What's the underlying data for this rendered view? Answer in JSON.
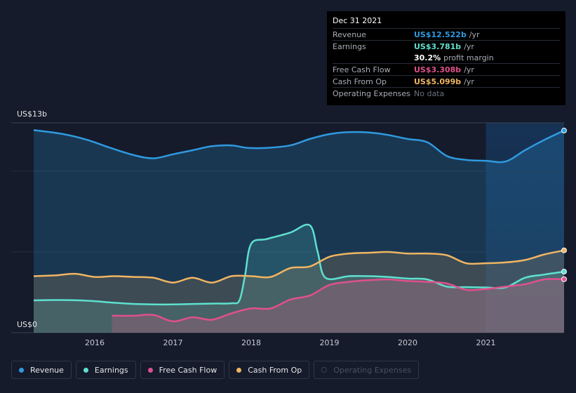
{
  "tooltip": {
    "date": "Dec 31 2021",
    "rows": [
      {
        "label": "Revenue",
        "value": "US$12.522b",
        "unit": "/yr",
        "color": "#2f9ae0"
      },
      {
        "label": "Earnings",
        "value": "US$3.781b",
        "unit": "/yr",
        "color": "#5fe0cf"
      },
      {
        "label": "",
        "value": "30.2%",
        "unit": "profit margin",
        "color": "#ffffff"
      },
      {
        "label": "Free Cash Flow",
        "value": "US$3.308b",
        "unit": "/yr",
        "color": "#e0508c"
      },
      {
        "label": "Cash From Op",
        "value": "US$5.099b",
        "unit": "/yr",
        "color": "#f0b562"
      },
      {
        "label": "Operating Expenses",
        "value": "No data",
        "unit": "",
        "color": "#6b7080"
      }
    ]
  },
  "legend": [
    {
      "label": "Revenue",
      "color": "#2f9ae0",
      "active": true
    },
    {
      "label": "Earnings",
      "color": "#5fe0cf",
      "active": true
    },
    {
      "label": "Free Cash Flow",
      "color": "#e0508c",
      "active": true
    },
    {
      "label": "Cash From Op",
      "color": "#f0b562",
      "active": true
    },
    {
      "label": "Operating Expenses",
      "color": "#3a4152",
      "active": false
    }
  ],
  "chart_data": {
    "type": "area",
    "ylabel_top": "US$13b",
    "ylabel_bottom": "US$0",
    "ylim": [
      0,
      13
    ],
    "xlim": [
      2015.22,
      2022.0
    ],
    "x_ticks": [
      2016,
      2017,
      2018,
      2019,
      2020,
      2021
    ],
    "x_tick_labels": [
      "2016",
      "2017",
      "2018",
      "2019",
      "2020",
      "2021"
    ],
    "forecast_start": 2021.0,
    "series": [
      {
        "name": "Revenue",
        "color": "#2f9ae0",
        "points": [
          [
            2015.22,
            12.55
          ],
          [
            2015.6,
            12.3
          ],
          [
            2015.9,
            11.95
          ],
          [
            2016.2,
            11.45
          ],
          [
            2016.5,
            11.0
          ],
          [
            2016.75,
            10.8
          ],
          [
            2017.0,
            11.05
          ],
          [
            2017.25,
            11.3
          ],
          [
            2017.5,
            11.55
          ],
          [
            2017.75,
            11.6
          ],
          [
            2017.95,
            11.45
          ],
          [
            2018.2,
            11.45
          ],
          [
            2018.5,
            11.6
          ],
          [
            2018.75,
            12.0
          ],
          [
            2019.0,
            12.3
          ],
          [
            2019.25,
            12.42
          ],
          [
            2019.5,
            12.4
          ],
          [
            2019.75,
            12.25
          ],
          [
            2020.0,
            12.0
          ],
          [
            2020.25,
            11.8
          ],
          [
            2020.5,
            10.95
          ],
          [
            2020.75,
            10.7
          ],
          [
            2021.0,
            10.65
          ],
          [
            2021.25,
            10.6
          ],
          [
            2021.5,
            11.3
          ],
          [
            2021.75,
            11.95
          ],
          [
            2022.0,
            12.52
          ]
        ]
      },
      {
        "name": "Earnings",
        "color": "#5fe0cf",
        "points": [
          [
            2015.22,
            2.0
          ],
          [
            2015.5,
            2.02
          ],
          [
            2015.8,
            2.0
          ],
          [
            2016.0,
            1.95
          ],
          [
            2016.25,
            1.85
          ],
          [
            2016.5,
            1.78
          ],
          [
            2016.75,
            1.75
          ],
          [
            2017.0,
            1.75
          ],
          [
            2017.25,
            1.78
          ],
          [
            2017.5,
            1.8
          ],
          [
            2017.75,
            1.82
          ],
          [
            2017.85,
            2.0
          ],
          [
            2017.92,
            3.5
          ],
          [
            2018.0,
            5.5
          ],
          [
            2018.2,
            5.8
          ],
          [
            2018.5,
            6.2
          ],
          [
            2018.75,
            6.65
          ],
          [
            2018.85,
            5.0
          ],
          [
            2018.95,
            3.4
          ],
          [
            2019.25,
            3.5
          ],
          [
            2019.5,
            3.5
          ],
          [
            2019.75,
            3.45
          ],
          [
            2020.0,
            3.35
          ],
          [
            2020.25,
            3.3
          ],
          [
            2020.5,
            2.85
          ],
          [
            2020.75,
            2.82
          ],
          [
            2021.0,
            2.8
          ],
          [
            2021.25,
            2.8
          ],
          [
            2021.5,
            3.4
          ],
          [
            2021.75,
            3.6
          ],
          [
            2022.0,
            3.78
          ]
        ]
      },
      {
        "name": "Free Cash Flow",
        "color": "#e0508c",
        "points": [
          [
            2016.22,
            1.05
          ],
          [
            2016.5,
            1.05
          ],
          [
            2016.75,
            1.1
          ],
          [
            2017.0,
            0.7
          ],
          [
            2017.25,
            0.95
          ],
          [
            2017.5,
            0.8
          ],
          [
            2017.75,
            1.2
          ],
          [
            2018.0,
            1.5
          ],
          [
            2018.25,
            1.5
          ],
          [
            2018.5,
            2.05
          ],
          [
            2018.75,
            2.3
          ],
          [
            2019.0,
            2.95
          ],
          [
            2019.25,
            3.15
          ],
          [
            2019.5,
            3.25
          ],
          [
            2019.75,
            3.3
          ],
          [
            2020.0,
            3.2
          ],
          [
            2020.25,
            3.15
          ],
          [
            2020.5,
            3.05
          ],
          [
            2020.75,
            2.65
          ],
          [
            2021.0,
            2.7
          ],
          [
            2021.25,
            2.85
          ],
          [
            2021.5,
            3.0
          ],
          [
            2021.75,
            3.3
          ],
          [
            2022.0,
            3.31
          ]
        ]
      },
      {
        "name": "Cash From Op",
        "color": "#f0b562",
        "points": [
          [
            2015.22,
            3.5
          ],
          [
            2015.5,
            3.55
          ],
          [
            2015.75,
            3.65
          ],
          [
            2016.0,
            3.45
          ],
          [
            2016.25,
            3.5
          ],
          [
            2016.5,
            3.45
          ],
          [
            2016.75,
            3.4
          ],
          [
            2017.0,
            3.1
          ],
          [
            2017.25,
            3.4
          ],
          [
            2017.5,
            3.1
          ],
          [
            2017.75,
            3.5
          ],
          [
            2018.0,
            3.5
          ],
          [
            2018.25,
            3.45
          ],
          [
            2018.5,
            4.0
          ],
          [
            2018.75,
            4.1
          ],
          [
            2019.0,
            4.7
          ],
          [
            2019.25,
            4.9
          ],
          [
            2019.5,
            4.95
          ],
          [
            2019.75,
            5.0
          ],
          [
            2020.0,
            4.9
          ],
          [
            2020.25,
            4.9
          ],
          [
            2020.5,
            4.8
          ],
          [
            2020.75,
            4.3
          ],
          [
            2021.0,
            4.3
          ],
          [
            2021.25,
            4.35
          ],
          [
            2021.5,
            4.5
          ],
          [
            2021.75,
            4.85
          ],
          [
            2022.0,
            5.1
          ]
        ]
      }
    ]
  }
}
